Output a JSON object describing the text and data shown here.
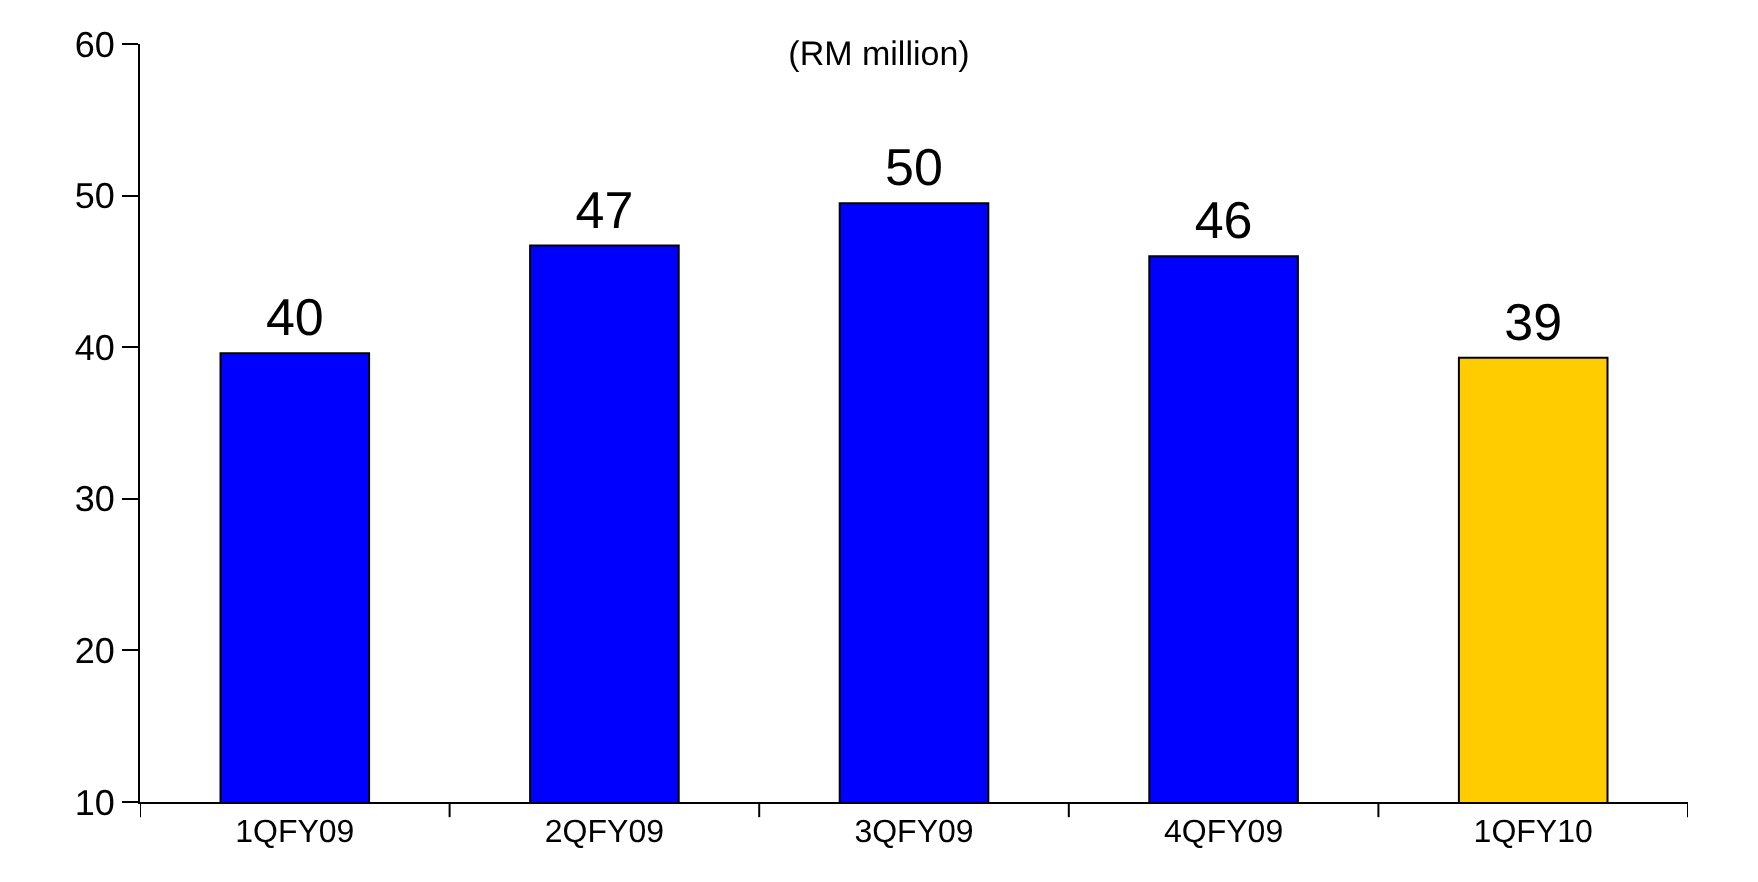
{
  "chart_data": {
    "type": "bar",
    "title": "(RM million)",
    "categories": [
      "1QFY09",
      "2QFY09",
      "3QFY09",
      "4QFY09",
      "1QFY10"
    ],
    "values": [
      39.6,
      46.7,
      49.5,
      46.0,
      39.3
    ],
    "value_labels": [
      "40",
      "47",
      "50",
      "46",
      "39"
    ],
    "colors": [
      "#0000ff",
      "#0000ff",
      "#0000ff",
      "#0000ff",
      "#ffcc00"
    ],
    "ylim": [
      10,
      60
    ],
    "yticks": [
      10,
      20,
      30,
      40,
      50,
      60
    ],
    "legend": false
  }
}
